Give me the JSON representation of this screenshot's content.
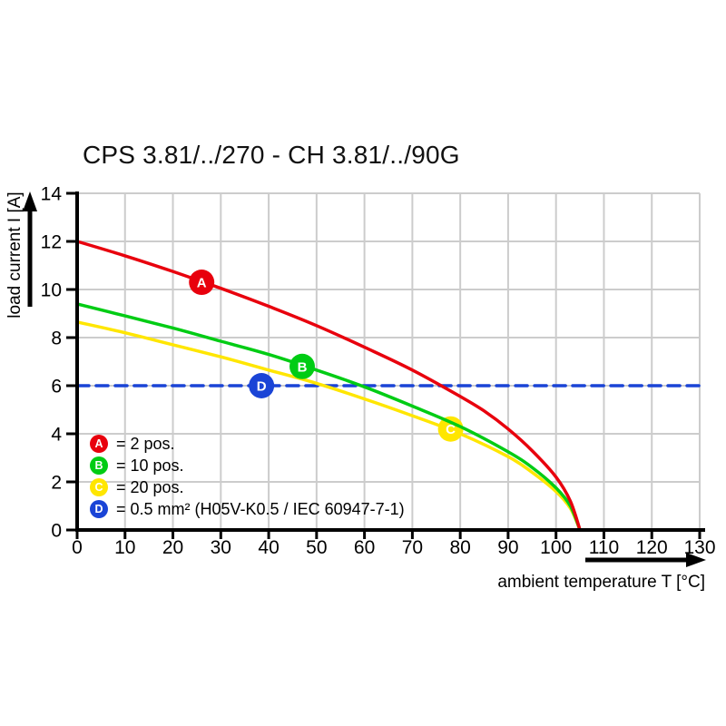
{
  "chart_data": {
    "type": "line",
    "title": "CPS 3.81/../270 - CH 3.81/../90G",
    "xlabel": "ambient temperature T [°C]",
    "ylabel": "load current I [A]",
    "xlim": [
      0,
      130
    ],
    "ylim": [
      0,
      14
    ],
    "xticks": [
      0,
      10,
      20,
      30,
      40,
      50,
      60,
      70,
      80,
      90,
      100,
      110,
      120,
      130
    ],
    "yticks": [
      0,
      2,
      4,
      6,
      8,
      10,
      12,
      14
    ],
    "grid": true,
    "grid_color": "#cccccc",
    "series": [
      {
        "id": "A",
        "name": "2 pos.",
        "color": "#e8000d",
        "style": "solid",
        "points": [
          [
            0,
            12
          ],
          [
            10,
            11.4
          ],
          [
            20,
            10.75
          ],
          [
            30,
            10.05
          ],
          [
            40,
            9.3
          ],
          [
            50,
            8.5
          ],
          [
            60,
            7.6
          ],
          [
            70,
            6.65
          ],
          [
            80,
            5.55
          ],
          [
            85,
            4.95
          ],
          [
            90,
            4.2
          ],
          [
            95,
            3.3
          ],
          [
            100,
            2.2
          ],
          [
            103,
            1.2
          ],
          [
            105,
            0
          ]
        ]
      },
      {
        "id": "B",
        "name": "10 pos.",
        "color": "#00cc14",
        "style": "solid",
        "points": [
          [
            0,
            9.4
          ],
          [
            10,
            8.9
          ],
          [
            20,
            8.4
          ],
          [
            30,
            7.85
          ],
          [
            40,
            7.3
          ],
          [
            50,
            6.65
          ],
          [
            60,
            5.95
          ],
          [
            70,
            5.15
          ],
          [
            80,
            4.3
          ],
          [
            90,
            3.25
          ],
          [
            95,
            2.6
          ],
          [
            100,
            1.75
          ],
          [
            103,
            1.0
          ],
          [
            105,
            0
          ]
        ]
      },
      {
        "id": "C",
        "name": "20 pos.",
        "color": "#ffe600",
        "style": "solid",
        "points": [
          [
            0,
            8.65
          ],
          [
            10,
            8.2
          ],
          [
            20,
            7.7
          ],
          [
            30,
            7.2
          ],
          [
            40,
            6.65
          ],
          [
            50,
            6.1
          ],
          [
            60,
            5.45
          ],
          [
            70,
            4.75
          ],
          [
            80,
            4.0
          ],
          [
            90,
            3.05
          ],
          [
            95,
            2.4
          ],
          [
            100,
            1.6
          ],
          [
            103,
            0.9
          ],
          [
            105,
            0
          ]
        ]
      },
      {
        "id": "D",
        "name": "0.5 mm² (H05V-K0.5 / IEC 60947-7-1)",
        "color": "#1a44d6",
        "style": "dashed",
        "points": [
          [
            0,
            6
          ],
          [
            130,
            6
          ]
        ]
      }
    ],
    "markers": [
      {
        "letter": "A",
        "x": 26,
        "y": 10.3,
        "color": "#e8000d"
      },
      {
        "letter": "B",
        "x": 47,
        "y": 6.8,
        "color": "#00cc14"
      },
      {
        "letter": "C",
        "x": 78,
        "y": 4.2,
        "color": "#ffe600"
      },
      {
        "letter": "D",
        "x": 38.5,
        "y": 6.0,
        "color": "#1a44d6"
      }
    ],
    "legend": {
      "position": "bottom-left",
      "items": [
        {
          "letter": "A",
          "color": "#e8000d",
          "label": "= 2 pos."
        },
        {
          "letter": "B",
          "color": "#00cc14",
          "label": "= 10 pos."
        },
        {
          "letter": "C",
          "color": "#ffe600",
          "label": "= 20 pos."
        },
        {
          "letter": "D",
          "color": "#1a44d6",
          "label": "= 0.5 mm² (H05V-K0.5 / IEC 60947-7-1)"
        }
      ]
    },
    "axis_color": "#000000"
  }
}
